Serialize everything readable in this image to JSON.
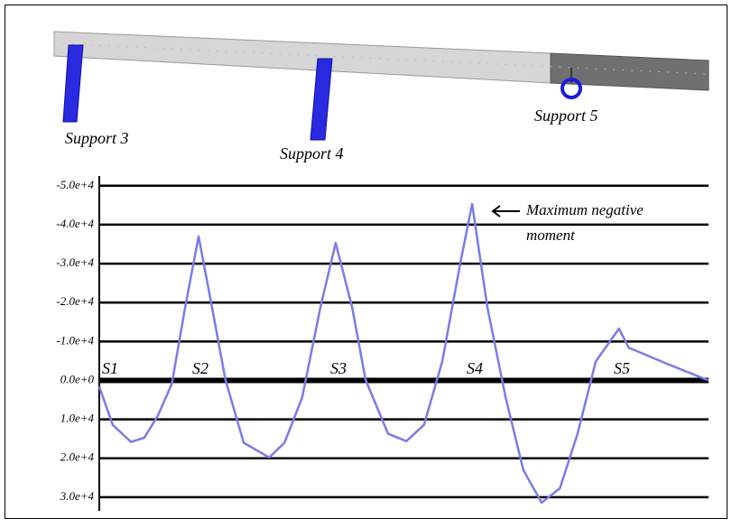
{
  "beam": {
    "support_labels": [
      "Support 3",
      "Support 4",
      "Support 5"
    ]
  },
  "chart_data": {
    "type": "line",
    "series": [
      {
        "color": "#7b7be8",
        "x": [
          0,
          2.2,
          5.2,
          7.4,
          9.6,
          11.9,
          14.1,
          16.3,
          18.5,
          20.7,
          23.7,
          27.9,
          30.4,
          33.3,
          36.3,
          38.8,
          41.5,
          43.7,
          47.4,
          50.4,
          53.3,
          56.3,
          59.3,
          61.2,
          63.7,
          66.7,
          69.6,
          72.6,
          75.6,
          78.5,
          81.5,
          85.3,
          86.9,
          93.3,
          100
        ],
        "values": [
          1600,
          11400,
          15800,
          14700,
          9100,
          900,
          -18800,
          -37000,
          -18800,
          -200,
          16000,
          19800,
          16000,
          4400,
          -18800,
          -35300,
          -18800,
          -200,
          13700,
          15600,
          11400,
          -4900,
          -30500,
          -45300,
          -18800,
          4400,
          23000,
          31400,
          27700,
          13700,
          -4900,
          -13300,
          -8400,
          -4200,
          0
        ]
      }
    ],
    "xlim": [
      0,
      100
    ],
    "ylim": [
      33500,
      -52500
    ],
    "yticks": [
      {
        "value": -50000,
        "label": "-5.0e+4"
      },
      {
        "value": -40000,
        "label": "-4.0e+4"
      },
      {
        "value": -30000,
        "label": "-3.0e+4"
      },
      {
        "value": -20000,
        "label": "-2.0e+4"
      },
      {
        "value": -10000,
        "label": "-1.0e+4"
      },
      {
        "value": 0,
        "label": "0.0e+0"
      },
      {
        "value": 10000,
        "label": "1.0e+4"
      },
      {
        "value": 20000,
        "label": "2.0e+4"
      },
      {
        "value": 30000,
        "label": "3.0e+4"
      }
    ],
    "grid": true,
    "support_labels": [
      "S1",
      "S2",
      "S3",
      "S4",
      "S5"
    ],
    "annotation": [
      "Maximum negative",
      "moment"
    ]
  }
}
